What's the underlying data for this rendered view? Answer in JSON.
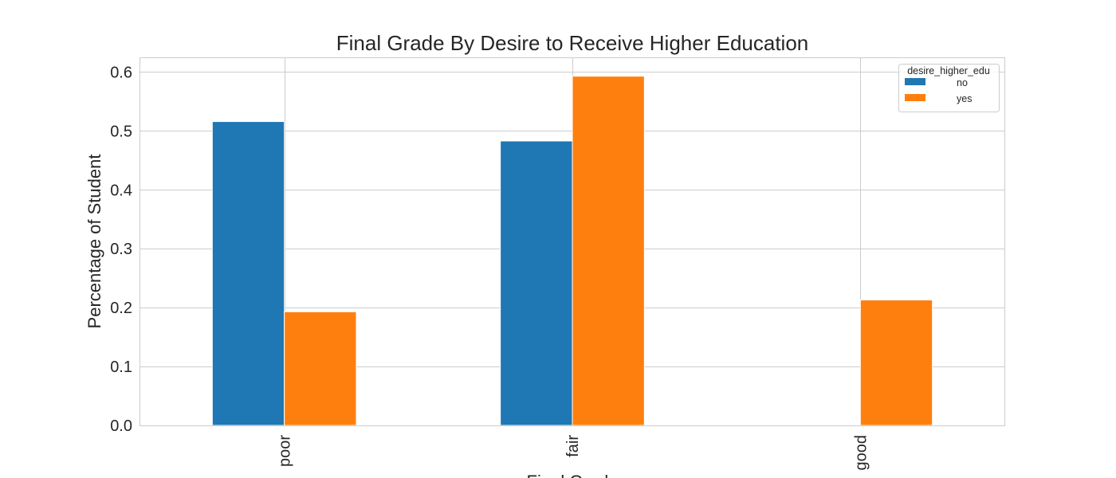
{
  "chart_data": {
    "type": "bar",
    "title": "Final Grade By Desire to Receive Higher Education",
    "xlabel": "Final Grade",
    "ylabel": "Percentage of Student",
    "categories": [
      "poor",
      "fair",
      "good"
    ],
    "series": [
      {
        "name": "no",
        "color": "#1f77b4",
        "values": [
          0.516,
          0.483,
          0.0
        ]
      },
      {
        "name": "yes",
        "color": "#ff7f0e",
        "values": [
          0.193,
          0.593,
          0.213
        ]
      }
    ],
    "ylim": [
      0,
      0.625
    ],
    "yticks": [
      0.0,
      0.1,
      0.2,
      0.3,
      0.4,
      0.5,
      0.6
    ],
    "ytick_labels": [
      "0.0",
      "0.1",
      "0.2",
      "0.3",
      "0.4",
      "0.5",
      "0.6"
    ],
    "grid": true,
    "legend": {
      "title": "desire_higher_edu",
      "position": "upper right"
    }
  }
}
